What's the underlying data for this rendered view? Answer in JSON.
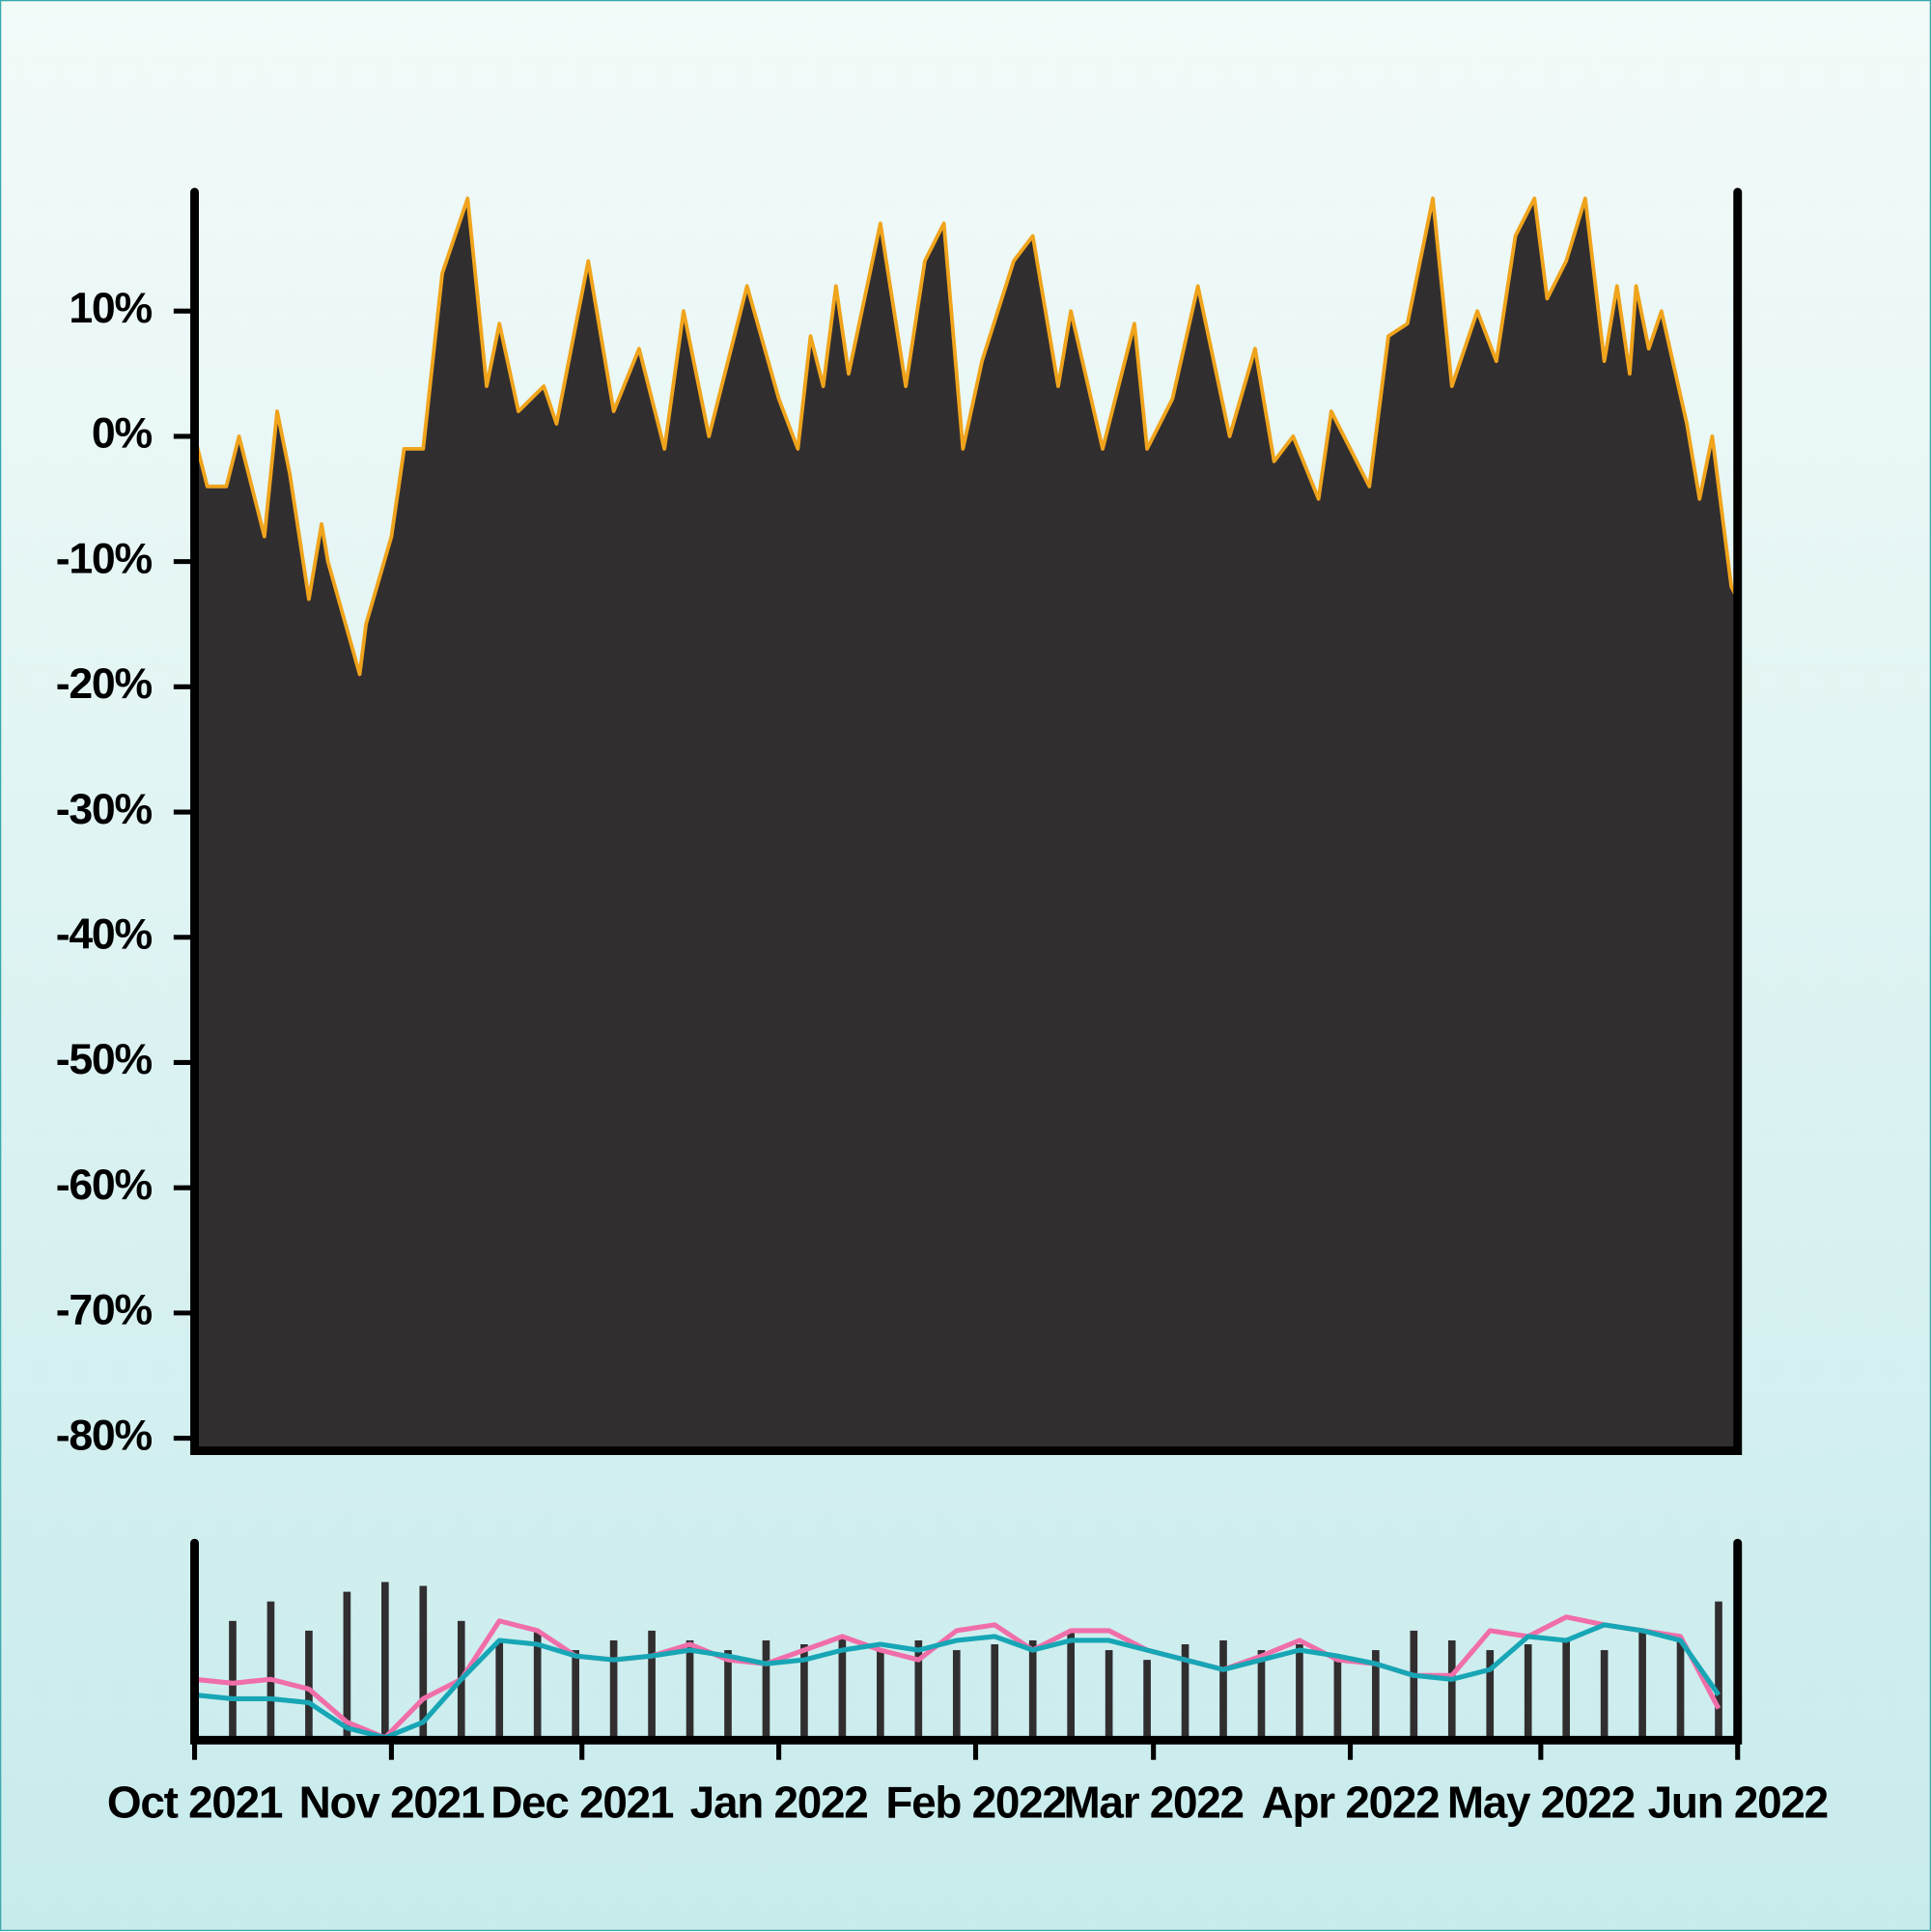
{
  "chart_data": [
    {
      "type": "area",
      "color": "#312e30",
      "line_color": "#f0a41c",
      "x": [
        0,
        2,
        5,
        7,
        8,
        11,
        13,
        15,
        18,
        20,
        21,
        26,
        27,
        31,
        33,
        36,
        39,
        43,
        46,
        48,
        51,
        55,
        57,
        62,
        66,
        70,
        74,
        77,
        81,
        87,
        92,
        95,
        97,
        99,
        101,
        103,
        108,
        112,
        115,
        118,
        121,
        124,
        129,
        132,
        136,
        138,
        143,
        148,
        150,
        154,
        158,
        163,
        167,
        170,
        173,
        177,
        179,
        185,
        188,
        191,
        195,
        198,
        202,
        205,
        208,
        211,
        213,
        216,
        219,
        222,
        224,
        226,
        227,
        229,
        231,
        235,
        237,
        239,
        242,
        243
      ],
      "values": [
        0,
        -4,
        -4,
        0,
        -2,
        -8,
        2,
        -3,
        -13,
        -7,
        -10,
        -19,
        -15,
        -8,
        -1,
        -1,
        13,
        19,
        4,
        9,
        2,
        4,
        1,
        14,
        2,
        7,
        -1,
        10,
        0,
        12,
        3,
        -1,
        8,
        4,
        12,
        5,
        17,
        4,
        14,
        17,
        -1,
        6,
        14,
        16,
        4,
        10,
        -1,
        9,
        -1,
        3,
        12,
        0,
        7,
        -2,
        0,
        -5,
        2,
        -4,
        8,
        9,
        19,
        4,
        10,
        6,
        16,
        19,
        11,
        14,
        19,
        6,
        12,
        5,
        12,
        7,
        10,
        1,
        -5,
        0,
        -12,
        -13
      ],
      "xlim": [
        0,
        243
      ],
      "ylim": [
        -81,
        19.5
      ],
      "yticks": [
        {
          "value": -80,
          "label": "-80%"
        },
        {
          "value": -70,
          "label": "-70%"
        },
        {
          "value": -60,
          "label": "-60%"
        },
        {
          "value": -50,
          "label": "-50%"
        },
        {
          "value": -40,
          "label": "-40%"
        },
        {
          "value": -30,
          "label": "-30%"
        },
        {
          "value": -20,
          "label": "-20%"
        },
        {
          "value": -10,
          "label": "-10%"
        },
        {
          "value": 0,
          "label": "0%"
        },
        {
          "value": 10,
          "label": "10%"
        }
      ]
    },
    {
      "type": "bar",
      "x": [
        0,
        6,
        12,
        18,
        24,
        30,
        36,
        42,
        48,
        54,
        60,
        66,
        72,
        78,
        84,
        90,
        96,
        102,
        108,
        114,
        120,
        126,
        132,
        138,
        144,
        150,
        156,
        162,
        168,
        174,
        180,
        186,
        192,
        198,
        204,
        210,
        216,
        222,
        228,
        234,
        240
      ],
      "xlim": [
        0,
        243
      ],
      "ylim": [
        0,
        100
      ],
      "series": [
        {
          "type": "bar",
          "color": "#312e30",
          "values": [
            65,
            60,
            70,
            55,
            75,
            80,
            78,
            60,
            50,
            55,
            45,
            50,
            55,
            50,
            45,
            50,
            48,
            52,
            45,
            50,
            45,
            48,
            50,
            55,
            45,
            40,
            48,
            50,
            45,
            48,
            40,
            45,
            55,
            50,
            45,
            48,
            50,
            45,
            55,
            50,
            70
          ]
        },
        {
          "type": "line",
          "color": "#f06ea9",
          "values": [
            30,
            28,
            30,
            25,
            8,
            0,
            20,
            30,
            60,
            55,
            42,
            40,
            42,
            48,
            40,
            38,
            45,
            52,
            45,
            40,
            55,
            58,
            45,
            55,
            55,
            45,
            40,
            35,
            42,
            50,
            40,
            38,
            32,
            32,
            55,
            52,
            62,
            58,
            55,
            52,
            15
          ]
        },
        {
          "type": "line",
          "color": "#17a6b5",
          "values": [
            22,
            20,
            20,
            18,
            5,
            0,
            8,
            30,
            50,
            48,
            42,
            40,
            42,
            45,
            42,
            38,
            40,
            45,
            48,
            45,
            50,
            52,
            45,
            50,
            50,
            45,
            40,
            35,
            40,
            45,
            42,
            38,
            32,
            30,
            35,
            52,
            50,
            58,
            55,
            50,
            22
          ]
        }
      ],
      "xticks": [
        {
          "value": 0,
          "label": "Oct 2021"
        },
        {
          "value": 31,
          "label": "Nov 2021"
        },
        {
          "value": 61,
          "label": "Dec 2021"
        },
        {
          "value": 92,
          "label": "Jan 2022"
        },
        {
          "value": 123,
          "label": "Feb 2022"
        },
        {
          "value": 151,
          "label": "Mar 2022"
        },
        {
          "value": 182,
          "label": "Apr 2022"
        },
        {
          "value": 212,
          "label": "May 2022"
        },
        {
          "value": 243,
          "label": "Jun 2022"
        }
      ]
    }
  ]
}
